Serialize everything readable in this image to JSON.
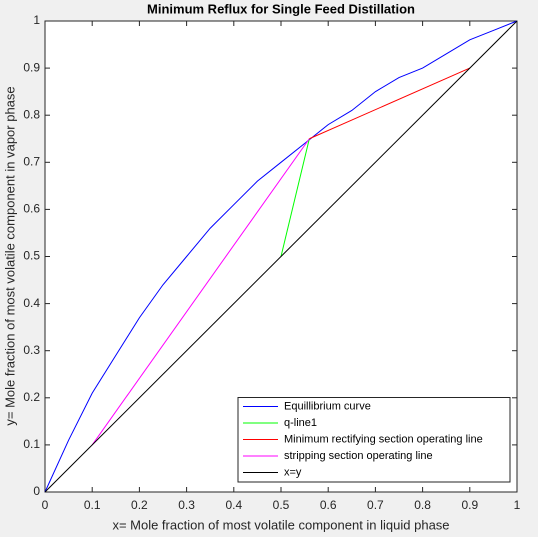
{
  "chart_data": {
    "type": "line",
    "title": "Minimum Reflux for Single Feed Distillation",
    "x_label": "x= Mole fraction of most volatile component in liquid phase",
    "y_label": "y= Mole fraction of most volatile component in vapor phase",
    "xlim": [
      0,
      1
    ],
    "ylim": [
      0,
      1
    ],
    "xticks": [
      0,
      0.1,
      0.2,
      0.3,
      0.4,
      0.5,
      0.6,
      0.7,
      0.8,
      0.9,
      1
    ],
    "yticks": [
      0,
      0.1,
      0.2,
      0.3,
      0.4,
      0.5,
      0.6,
      0.7,
      0.8,
      0.9,
      1
    ],
    "legend": "lower right",
    "series": [
      {
        "name": "Equillibrium curve",
        "color": "#0000ff",
        "x": [
          0,
          0.05,
          0.1,
          0.15,
          0.2,
          0.25,
          0.3,
          0.35,
          0.4,
          0.45,
          0.5,
          0.55,
          0.6,
          0.65,
          0.7,
          0.75,
          0.8,
          0.85,
          0.9,
          0.95,
          1
        ],
        "values": [
          0,
          0.11,
          0.21,
          0.29,
          0.37,
          0.44,
          0.5,
          0.56,
          0.61,
          0.66,
          0.7,
          0.74,
          0.78,
          0.81,
          0.85,
          0.88,
          0.9,
          0.93,
          0.96,
          0.98,
          1
        ]
      },
      {
        "name": "q-line1",
        "color": "#00ff00",
        "x": [
          0.5,
          0.56
        ],
        "values": [
          0.5,
          0.75
        ]
      },
      {
        "name": "Minimum rectifying section operating line",
        "color": "#ff0000",
        "x": [
          0.56,
          0.9
        ],
        "values": [
          0.75,
          0.9
        ]
      },
      {
        "name": "stripping section operating line",
        "color": "#ff00ff",
        "x": [
          0.1,
          0.56
        ],
        "values": [
          0.1,
          0.75
        ]
      },
      {
        "name": "x=y",
        "color": "#000000",
        "x": [
          0,
          1
        ],
        "values": [
          0,
          1
        ]
      }
    ]
  }
}
